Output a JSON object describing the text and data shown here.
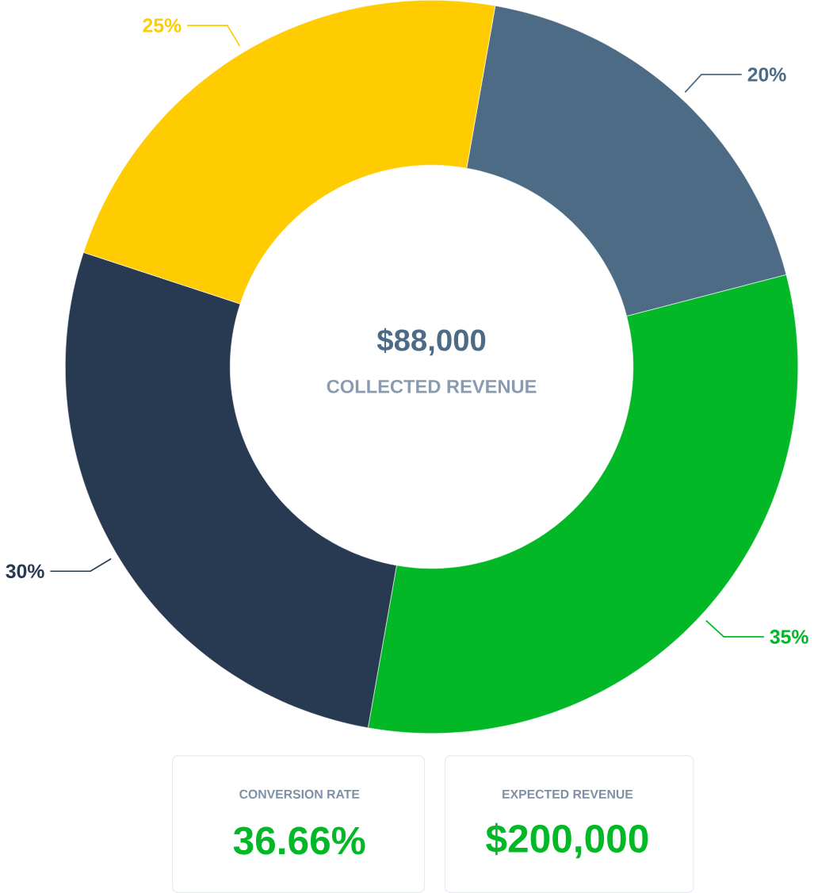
{
  "chart_data": {
    "type": "donut",
    "categories": [
      null,
      null,
      null,
      null
    ],
    "values": [
      20,
      35,
      30,
      25
    ],
    "colors": [
      "#4d6b85",
      "#02b826",
      "#283a52",
      "#fecc00"
    ],
    "value_labels": [
      "20%",
      "35%",
      "30%",
      "25%"
    ],
    "annotations": [
      "$88,000",
      "COLLECTED REVENUE",
      "CONVERSION RATE",
      "36.66%",
      "EXPECTED REVENUE",
      "$200,000"
    ]
  }
}
